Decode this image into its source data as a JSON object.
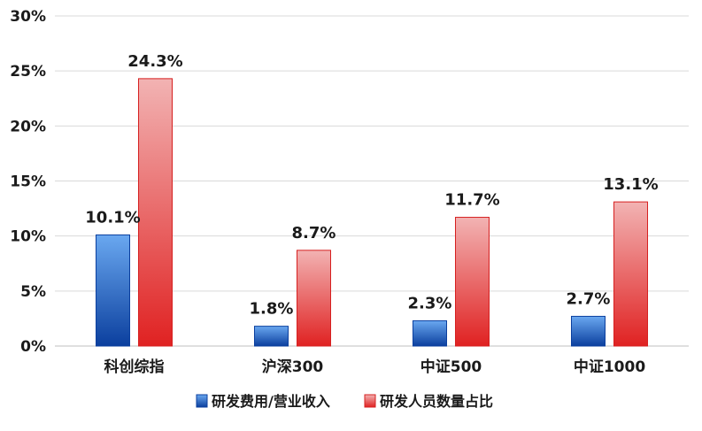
{
  "chart_data": {
    "type": "bar",
    "categories": [
      "科创综指",
      "沪深300",
      "中证500",
      "中证1000"
    ],
    "series": [
      {
        "name": "研发费用/营业收入",
        "values": [
          10.1,
          1.8,
          2.3,
          2.7
        ],
        "labels": [
          "10.1%",
          "1.8%",
          "2.3%",
          "2.7%"
        ],
        "color_top": "#6aa8f0",
        "color_bottom": "#0b3f9e"
      },
      {
        "name": "研发人员数量占比",
        "values": [
          24.3,
          8.7,
          11.7,
          13.1
        ],
        "labels": [
          "24.3%",
          "8.7%",
          "11.7%",
          "13.1%"
        ],
        "color_top": "#f2b3b3",
        "color_bottom": "#e02222"
      }
    ],
    "ylim": [
      0,
      30
    ],
    "yticks": [
      {
        "value": 0,
        "label": "0%"
      },
      {
        "value": 5,
        "label": "5%"
      },
      {
        "value": 10,
        "label": "10%"
      },
      {
        "value": 15,
        "label": "15%"
      },
      {
        "value": 20,
        "label": "20%"
      },
      {
        "value": 25,
        "label": "25%"
      },
      {
        "value": 30,
        "label": "30%"
      }
    ],
    "grid": true,
    "legend_position": "bottom",
    "title": "",
    "xlabel": "",
    "ylabel": ""
  }
}
